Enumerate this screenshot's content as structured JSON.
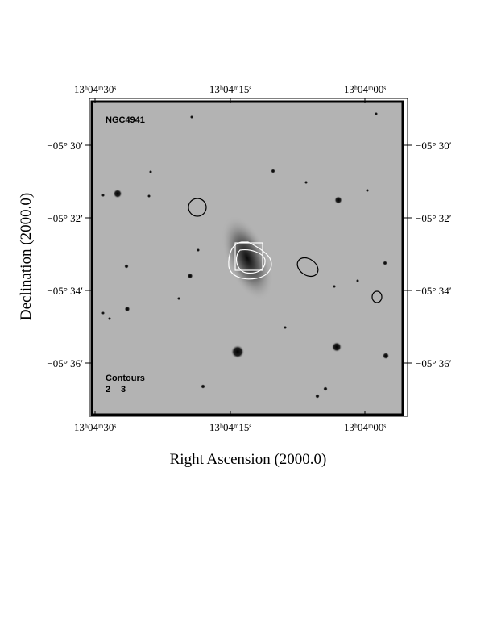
{
  "chart_data": {
    "type": "image",
    "title": "NGC4941",
    "xlabel": "Right Ascension (2000.0)",
    "ylabel": "Declination (2000.0)",
    "x_ticks": [
      "13ʰ04ᵐ30ˢ",
      "13ʰ04ᵐ15ˢ",
      "13ʰ04ᵐ00ˢ"
    ],
    "y_ticks": [
      "−05° 30′",
      "−05° 32′",
      "−05° 34′",
      "−05° 36′"
    ],
    "contours_label": "Contours",
    "contour_levels": [
      "2",
      "3"
    ],
    "colormap": "grayscale-inverted",
    "contour_colors": [
      "#000000",
      "#ffffff"
    ]
  }
}
